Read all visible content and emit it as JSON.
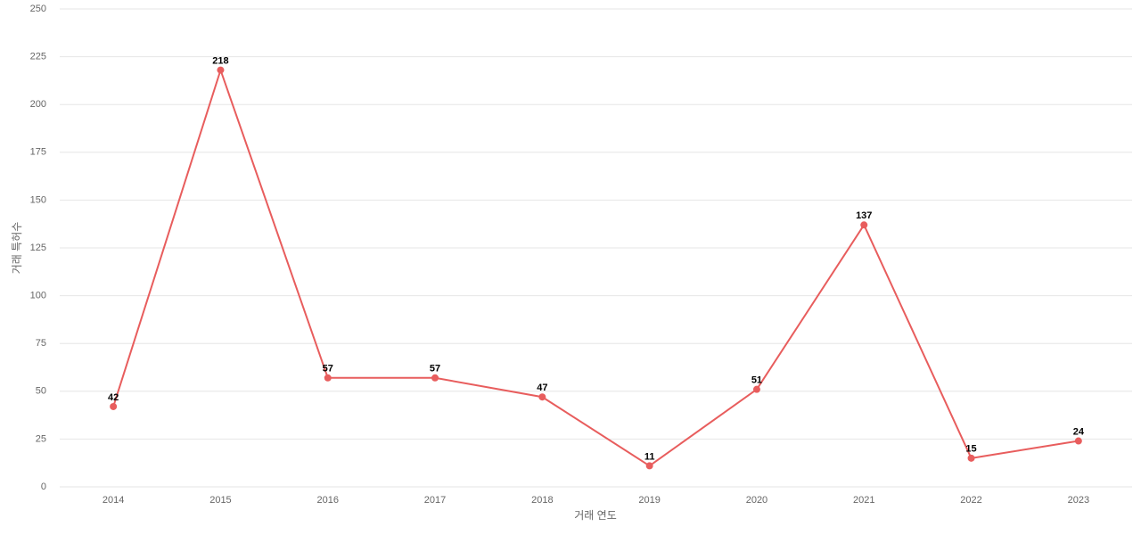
{
  "chart_data": {
    "type": "line",
    "x_label": "거래 연도",
    "y_label": "거래 특허수",
    "categories": [
      "2014",
      "2015",
      "2016",
      "2017",
      "2018",
      "2019",
      "2020",
      "2021",
      "2022",
      "2023"
    ],
    "values": [
      42,
      218,
      57,
      57,
      47,
      11,
      51,
      137,
      15,
      24
    ],
    "color": "#e85d5d",
    "ylim": [
      0,
      250
    ],
    "yticks": [
      0,
      25,
      50,
      75,
      100,
      125,
      150,
      175,
      200,
      225,
      250
    ],
    "grid": true
  }
}
